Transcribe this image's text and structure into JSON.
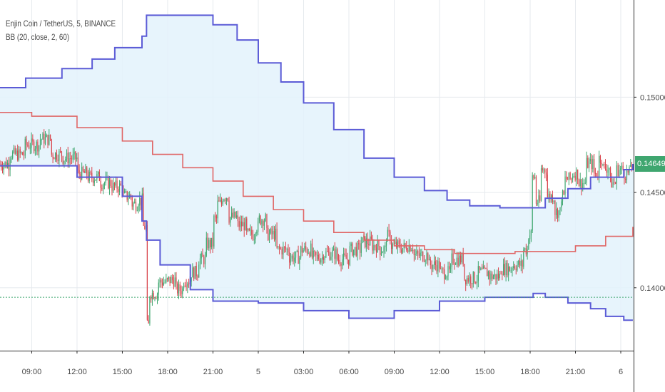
{
  "chart": {
    "title": "Enjin Coin / TetherUS, 5, BINANCE",
    "indicator": "BB (20, close, 2, 60)",
    "current_price_label": "0.14649"
  },
  "colors": {
    "upper_band": "#5b5bd6",
    "lower_band": "#5b5bd6",
    "middle_band": "#e06666",
    "band_fill": "#e3f2fb",
    "candle_up": "#3fa66f",
    "candle_down": "#d9434b",
    "price_line": "#3fa66f",
    "grid": "#e6eaee"
  },
  "chart_data": {
    "type": "line",
    "y_ticks": [
      0.15,
      0.145,
      0.14
    ],
    "y_tick_labels": [
      "0.15000",
      "0.14500",
      "0.14000"
    ],
    "ylim": [
      0.1367,
      0.1551
    ],
    "x_tick_labels": [
      "09:00",
      "12:00",
      "15:00",
      "18:00",
      "21:00",
      "5",
      "03:00",
      "06:00",
      "09:00",
      "12:00",
      "15:00",
      "18:00",
      "21:00",
      "6"
    ],
    "x_tick_hours": [
      9,
      12,
      15,
      18,
      21,
      24,
      27,
      30,
      33,
      36,
      39,
      42,
      45,
      48
    ],
    "xlim_hours": [
      6.9,
      48.85
    ],
    "grid": true,
    "horizontal_line": 0.1395,
    "series": [
      {
        "key": "upper",
        "x": [
          6.9,
          8.6,
          11,
          13,
          14.5,
          16.3,
          16.6,
          18,
          19.5,
          21,
          22.6,
          24,
          25.5,
          27,
          29,
          31,
          33,
          35,
          36.5,
          38,
          40,
          42,
          43,
          44.5,
          46,
          48.2,
          48.8
        ],
        "y": [
          0.1505,
          0.151,
          0.1515,
          0.152,
          0.1526,
          0.1532,
          0.1543,
          0.1543,
          0.1543,
          0.1538,
          0.153,
          0.1518,
          0.1508,
          0.1497,
          0.1483,
          0.1468,
          0.1458,
          0.1451,
          0.1446,
          0.1443,
          0.1442,
          0.1442,
          0.1447,
          0.1452,
          0.1458,
          0.1462,
          0.1465
        ]
      },
      {
        "key": "middle",
        "x": [
          6.9,
          9,
          12,
          15,
          17,
          19,
          21,
          23,
          25,
          27,
          29,
          31,
          33,
          35,
          37,
          39,
          41,
          43,
          45,
          47,
          48.8
        ],
        "y": [
          0.1492,
          0.149,
          0.1484,
          0.1477,
          0.147,
          0.1463,
          0.1456,
          0.1448,
          0.1441,
          0.1435,
          0.1429,
          0.1425,
          0.1422,
          0.142,
          0.1418,
          0.1418,
          0.1419,
          0.1419,
          0.1422,
          0.1427,
          0.1432
        ]
      },
      {
        "key": "lower",
        "x": [
          6.9,
          12,
          15,
          16.3,
          16.6,
          17.5,
          19.5,
          21,
          24,
          27,
          30,
          33,
          36,
          39,
          41,
          42.2,
          43,
          44.5,
          46,
          47,
          48.2,
          48.8
        ],
        "y": [
          0.1464,
          0.1458,
          0.1448,
          0.1435,
          0.1425,
          0.1412,
          0.1399,
          0.1393,
          0.1392,
          0.1388,
          0.1384,
          0.1388,
          0.1393,
          0.1395,
          0.1395,
          0.1397,
          0.1395,
          0.1392,
          0.1389,
          0.1385,
          0.1383,
          0.1383
        ]
      },
      {
        "key": "price",
        "x": [
          6.9,
          7.5,
          8.5,
          9.5,
          10.3,
          11,
          12,
          12.7,
          13.5,
          14.3,
          15,
          15.6,
          16,
          16.4,
          16.6,
          16.8,
          17.4,
          18,
          18.5,
          19,
          19.5,
          20,
          20.5,
          21,
          21.3,
          21.6,
          22,
          22.6,
          23.2,
          23.8,
          24,
          24.5,
          25.2,
          26,
          26.8,
          27.5,
          28.3,
          29.2,
          30,
          30.8,
          31.5,
          32,
          32.4,
          32.8,
          33.3,
          33.8,
          34.3,
          35.3,
          36,
          36.8,
          37.6,
          38.5,
          39.3,
          40,
          40.8,
          41.5,
          41.9,
          42.1,
          42.4,
          42.7,
          43.1,
          43.6,
          44,
          44.3,
          44.8,
          45.2,
          45.7,
          46.2,
          46.5,
          46.8,
          47.3,
          47.7,
          48.2,
          48.6
        ],
        "y": [
          0.1465,
          0.147,
          0.1475,
          0.1478,
          0.147,
          0.1468,
          0.146,
          0.1458,
          0.1455,
          0.1453,
          0.1448,
          0.1444,
          0.1446,
          0.1432,
          0.138,
          0.1397,
          0.1403,
          0.1404,
          0.1399,
          0.1404,
          0.1408,
          0.1415,
          0.1423,
          0.1436,
          0.1444,
          0.1448,
          0.1437,
          0.1433,
          0.1428,
          0.1432,
          0.1436,
          0.1428,
          0.142,
          0.1416,
          0.142,
          0.1416,
          0.1418,
          0.1415,
          0.142,
          0.1424,
          0.1422,
          0.142,
          0.1427,
          0.1422,
          0.1421,
          0.1422,
          0.1417,
          0.1412,
          0.1408,
          0.1415,
          0.1405,
          0.1408,
          0.1406,
          0.141,
          0.1412,
          0.142,
          0.1428,
          0.1458,
          0.1445,
          0.1462,
          0.1448,
          0.144,
          0.1448,
          0.1457,
          0.146,
          0.1455,
          0.1465,
          0.146,
          0.1468,
          0.1463,
          0.1455,
          0.1462,
          0.146,
          0.1465
        ]
      }
    ]
  }
}
